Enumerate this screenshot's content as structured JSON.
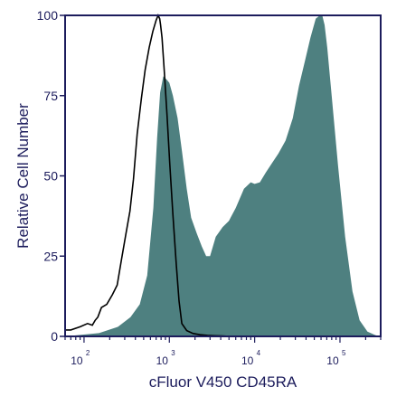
{
  "chart_data": {
    "type": "area",
    "title": "",
    "xlabel": "cFluor V450 CD45RA",
    "ylabel": "Relative Cell Number",
    "x_scale": "log",
    "xlim": [
      60,
      300000
    ],
    "ylim": [
      0,
      100
    ],
    "y_ticks": [
      0,
      25,
      50,
      75,
      100
    ],
    "x_ticks": [
      {
        "value": 100,
        "base": "10",
        "exp": "2"
      },
      {
        "value": 1000,
        "base": "10",
        "exp": "3"
      },
      {
        "value": 10000,
        "base": "10",
        "exp": "4"
      },
      {
        "value": 100000,
        "base": "10",
        "exp": "5"
      }
    ],
    "grid": false,
    "colors": {
      "filled_histogram": "#4e8080",
      "outline_histogram": "#000000",
      "axis": "#1c1c5c",
      "text": "#1c1c5c"
    },
    "series": [
      {
        "style": "filled",
        "x": [
          60,
          150,
          250,
          350,
          450,
          550,
          650,
          720,
          780,
          850,
          930,
          1000,
          1100,
          1250,
          1400,
          1600,
          1800,
          2100,
          2400,
          2700,
          3000,
          3500,
          4200,
          5000,
          6000,
          7500,
          9000,
          10000,
          11500,
          13500,
          16000,
          19000,
          23000,
          28000,
          33000,
          39000,
          45000,
          52000,
          58000,
          62000,
          66000,
          71000,
          80000,
          95000,
          115000,
          140000,
          170000,
          210000,
          260000,
          300000
        ],
        "y": [
          0,
          1,
          3,
          6,
          10,
          19,
          40,
          62,
          76,
          81,
          80,
          79,
          75,
          68,
          58,
          46,
          37,
          32,
          28,
          25,
          25,
          31,
          34,
          36,
          40,
          46,
          48,
          47.5,
          48,
          51,
          54,
          57,
          61,
          68,
          78,
          86,
          93,
          99,
          101,
          100,
          97,
          90,
          75,
          53,
          31,
          14,
          5,
          1.5,
          0.4,
          0
        ]
      },
      {
        "style": "outline",
        "x": [
          60,
          70,
          90,
          110,
          125,
          135,
          145,
          160,
          185,
          215,
          245,
          275,
          310,
          345,
          380,
          420,
          470,
          520,
          580,
          640,
          700,
          740,
          770,
          790,
          820,
          870,
          940,
          1010,
          1100,
          1200,
          1300,
          1400,
          1600,
          1900,
          2300,
          2800,
          3400,
          4200,
          5200,
          6500,
          8000
        ],
        "y": [
          2,
          2,
          3,
          4,
          3.5,
          5,
          6,
          9,
          10,
          13,
          16,
          24,
          32,
          39,
          49,
          63,
          74,
          83,
          90,
          95,
          98.5,
          100,
          99,
          97,
          93,
          83,
          69,
          54,
          38,
          23,
          11,
          4,
          1.8,
          0.9,
          0.5,
          0.3,
          0.2,
          0.1,
          0,
          0,
          0
        ]
      }
    ]
  }
}
